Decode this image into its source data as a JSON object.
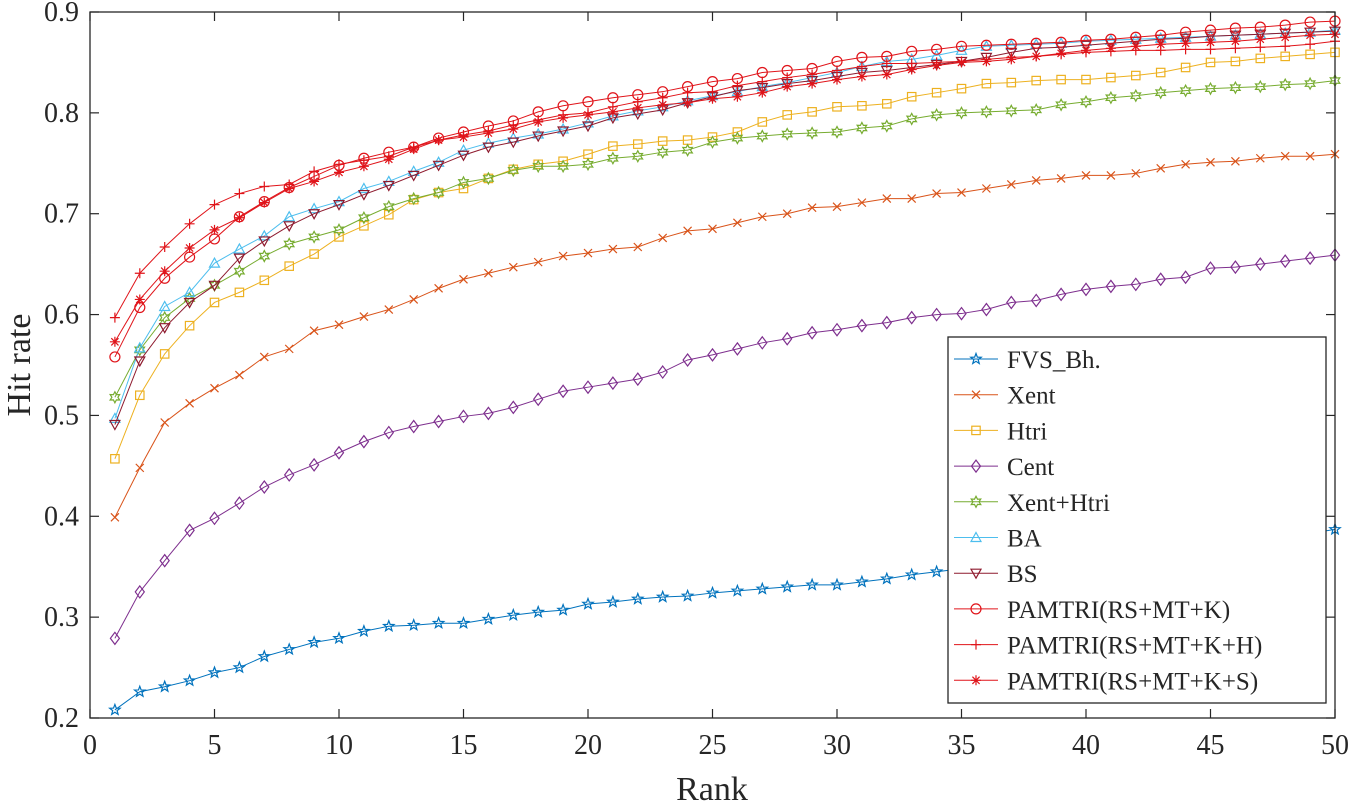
{
  "chart_data": {
    "type": "line",
    "title": "",
    "xlabel": "Rank",
    "ylabel": "Hit rate",
    "xlim": [
      0,
      50
    ],
    "ylim": [
      0.2,
      0.9
    ],
    "xticks": [
      0,
      5,
      10,
      15,
      20,
      25,
      30,
      35,
      40,
      45,
      50
    ],
    "xtick_labels": [
      "0",
      "5",
      "10",
      "15",
      "20",
      "25",
      "30",
      "35",
      "40",
      "45",
      "50"
    ],
    "yticks": [
      0.2,
      0.3,
      0.4,
      0.5,
      0.6,
      0.7,
      0.8,
      0.9
    ],
    "ytick_labels": [
      "0.2",
      "0.3",
      "0.4",
      "0.5",
      "0.6",
      "0.7",
      "0.8",
      "0.9"
    ],
    "grid": false,
    "legend_position": "lower-right",
    "x": [
      1,
      2,
      3,
      4,
      5,
      6,
      7,
      8,
      9,
      10,
      11,
      12,
      13,
      14,
      15,
      16,
      17,
      18,
      19,
      20,
      21,
      22,
      23,
      24,
      25,
      26,
      27,
      28,
      29,
      30,
      31,
      32,
      33,
      34,
      35,
      36,
      37,
      38,
      39,
      40,
      41,
      42,
      43,
      44,
      45,
      46,
      47,
      48,
      49,
      50
    ],
    "series": [
      {
        "name": "FVS_Bh.",
        "color": "#0072BD",
        "marker": "star5",
        "values": [
          0.208,
          0.226,
          0.231,
          0.237,
          0.245,
          0.25,
          0.261,
          0.268,
          0.275,
          0.279,
          0.286,
          0.291,
          0.292,
          0.294,
          0.294,
          0.298,
          0.302,
          0.305,
          0.307,
          0.313,
          0.315,
          0.318,
          0.32,
          0.321,
          0.324,
          0.326,
          0.328,
          0.33,
          0.332,
          0.332,
          0.335,
          0.338,
          0.342,
          0.345,
          0.348,
          0.351,
          0.353,
          0.355,
          0.357,
          0.359,
          0.361,
          0.363,
          0.365,
          0.367,
          0.369,
          0.372,
          0.375,
          0.378,
          0.383,
          0.387
        ]
      },
      {
        "name": "Xent",
        "color": "#D95319",
        "marker": "x",
        "values": [
          0.399,
          0.448,
          0.493,
          0.512,
          0.527,
          0.54,
          0.558,
          0.566,
          0.584,
          0.59,
          0.598,
          0.605,
          0.615,
          0.626,
          0.635,
          0.641,
          0.647,
          0.652,
          0.658,
          0.661,
          0.665,
          0.667,
          0.676,
          0.683,
          0.685,
          0.691,
          0.697,
          0.7,
          0.706,
          0.707,
          0.711,
          0.715,
          0.715,
          0.72,
          0.721,
          0.725,
          0.729,
          0.733,
          0.735,
          0.738,
          0.738,
          0.74,
          0.745,
          0.749,
          0.751,
          0.752,
          0.755,
          0.757,
          0.757,
          0.759
        ]
      },
      {
        "name": "Htri",
        "color": "#EDB120",
        "marker": "square",
        "values": [
          0.457,
          0.52,
          0.561,
          0.589,
          0.612,
          0.622,
          0.634,
          0.648,
          0.66,
          0.677,
          0.688,
          0.699,
          0.714,
          0.721,
          0.725,
          0.735,
          0.744,
          0.749,
          0.752,
          0.759,
          0.767,
          0.769,
          0.772,
          0.773,
          0.776,
          0.781,
          0.791,
          0.798,
          0.801,
          0.806,
          0.807,
          0.809,
          0.816,
          0.82,
          0.824,
          0.829,
          0.83,
          0.832,
          0.833,
          0.833,
          0.835,
          0.837,
          0.84,
          0.845,
          0.85,
          0.851,
          0.854,
          0.856,
          0.858,
          0.86
        ]
      },
      {
        "name": "Cent",
        "color": "#7E2F8E",
        "marker": "diamond",
        "values": [
          0.279,
          0.325,
          0.356,
          0.386,
          0.398,
          0.413,
          0.429,
          0.441,
          0.451,
          0.463,
          0.474,
          0.483,
          0.489,
          0.494,
          0.499,
          0.502,
          0.508,
          0.516,
          0.524,
          0.528,
          0.532,
          0.536,
          0.543,
          0.555,
          0.56,
          0.566,
          0.572,
          0.576,
          0.582,
          0.585,
          0.589,
          0.592,
          0.597,
          0.6,
          0.601,
          0.605,
          0.612,
          0.614,
          0.62,
          0.625,
          0.628,
          0.63,
          0.635,
          0.637,
          0.646,
          0.647,
          0.65,
          0.653,
          0.656,
          0.659
        ]
      },
      {
        "name": "Xent+Htri",
        "color": "#77AC30",
        "marker": "hexagram",
        "values": [
          0.518,
          0.565,
          0.597,
          0.616,
          0.629,
          0.643,
          0.658,
          0.67,
          0.677,
          0.684,
          0.696,
          0.707,
          0.715,
          0.721,
          0.731,
          0.735,
          0.743,
          0.747,
          0.747,
          0.749,
          0.755,
          0.757,
          0.761,
          0.763,
          0.771,
          0.775,
          0.777,
          0.779,
          0.78,
          0.781,
          0.785,
          0.787,
          0.794,
          0.798,
          0.8,
          0.801,
          0.802,
          0.803,
          0.808,
          0.811,
          0.815,
          0.817,
          0.82,
          0.822,
          0.824,
          0.825,
          0.826,
          0.828,
          0.829,
          0.832
        ]
      },
      {
        "name": "BA",
        "color": "#4DBEEE",
        "marker": "triangle-up",
        "values": [
          0.497,
          0.567,
          0.608,
          0.622,
          0.651,
          0.665,
          0.678,
          0.697,
          0.705,
          0.712,
          0.725,
          0.732,
          0.742,
          0.751,
          0.763,
          0.77,
          0.775,
          0.779,
          0.784,
          0.79,
          0.797,
          0.802,
          0.806,
          0.812,
          0.817,
          0.821,
          0.826,
          0.83,
          0.835,
          0.84,
          0.846,
          0.851,
          0.853,
          0.857,
          0.862,
          0.866,
          0.867,
          0.868,
          0.869,
          0.871,
          0.872,
          0.873,
          0.874,
          0.875,
          0.876,
          0.877,
          0.878,
          0.879,
          0.88,
          0.882
        ]
      },
      {
        "name": "BS",
        "color": "#8E1A2E",
        "marker": "triangle-down",
        "values": [
          0.491,
          0.554,
          0.587,
          0.612,
          0.629,
          0.656,
          0.673,
          0.688,
          0.7,
          0.709,
          0.719,
          0.728,
          0.738,
          0.748,
          0.758,
          0.766,
          0.771,
          0.777,
          0.782,
          0.787,
          0.795,
          0.799,
          0.803,
          0.81,
          0.816,
          0.822,
          0.825,
          0.829,
          0.832,
          0.836,
          0.84,
          0.842,
          0.845,
          0.848,
          0.851,
          0.855,
          0.86,
          0.864,
          0.865,
          0.867,
          0.869,
          0.871,
          0.873,
          0.874,
          0.876,
          0.877,
          0.878,
          0.879,
          0.88,
          0.881
        ]
      },
      {
        "name": "PAMTRI(RS+MT+K)",
        "color": "#E0141A",
        "marker": "circle",
        "values": [
          0.558,
          0.607,
          0.636,
          0.657,
          0.675,
          0.697,
          0.712,
          0.726,
          0.737,
          0.748,
          0.755,
          0.761,
          0.766,
          0.775,
          0.781,
          0.787,
          0.792,
          0.801,
          0.807,
          0.811,
          0.815,
          0.818,
          0.821,
          0.826,
          0.831,
          0.834,
          0.84,
          0.842,
          0.844,
          0.851,
          0.855,
          0.856,
          0.861,
          0.863,
          0.866,
          0.867,
          0.868,
          0.869,
          0.87,
          0.872,
          0.873,
          0.875,
          0.877,
          0.88,
          0.882,
          0.884,
          0.885,
          0.887,
          0.89,
          0.891
        ]
      },
      {
        "name": "PAMTRI(RS+MT+K+H)",
        "color": "#E0141A",
        "marker": "plus",
        "values": [
          0.597,
          0.641,
          0.667,
          0.69,
          0.709,
          0.72,
          0.727,
          0.729,
          0.742,
          0.749,
          0.753,
          0.757,
          0.766,
          0.773,
          0.778,
          0.782,
          0.788,
          0.793,
          0.798,
          0.8,
          0.806,
          0.811,
          0.815,
          0.82,
          0.821,
          0.827,
          0.831,
          0.835,
          0.838,
          0.842,
          0.846,
          0.849,
          0.849,
          0.85,
          0.851,
          0.853,
          0.855,
          0.856,
          0.858,
          0.86,
          0.861,
          0.862,
          0.862,
          0.863,
          0.863,
          0.864,
          0.865,
          0.866,
          0.868,
          0.871
        ]
      },
      {
        "name": "PAMTRI(RS+MT+K+S)",
        "color": "#E0141A",
        "marker": "asterisk",
        "values": [
          0.573,
          0.615,
          0.643,
          0.666,
          0.684,
          0.696,
          0.711,
          0.725,
          0.732,
          0.741,
          0.747,
          0.754,
          0.764,
          0.773,
          0.776,
          0.78,
          0.784,
          0.791,
          0.795,
          0.798,
          0.801,
          0.805,
          0.808,
          0.81,
          0.814,
          0.816,
          0.82,
          0.826,
          0.829,
          0.833,
          0.836,
          0.838,
          0.843,
          0.847,
          0.85,
          0.851,
          0.853,
          0.856,
          0.859,
          0.862,
          0.864,
          0.866,
          0.868,
          0.869,
          0.87,
          0.871,
          0.873,
          0.875,
          0.877,
          0.878
        ]
      }
    ]
  }
}
